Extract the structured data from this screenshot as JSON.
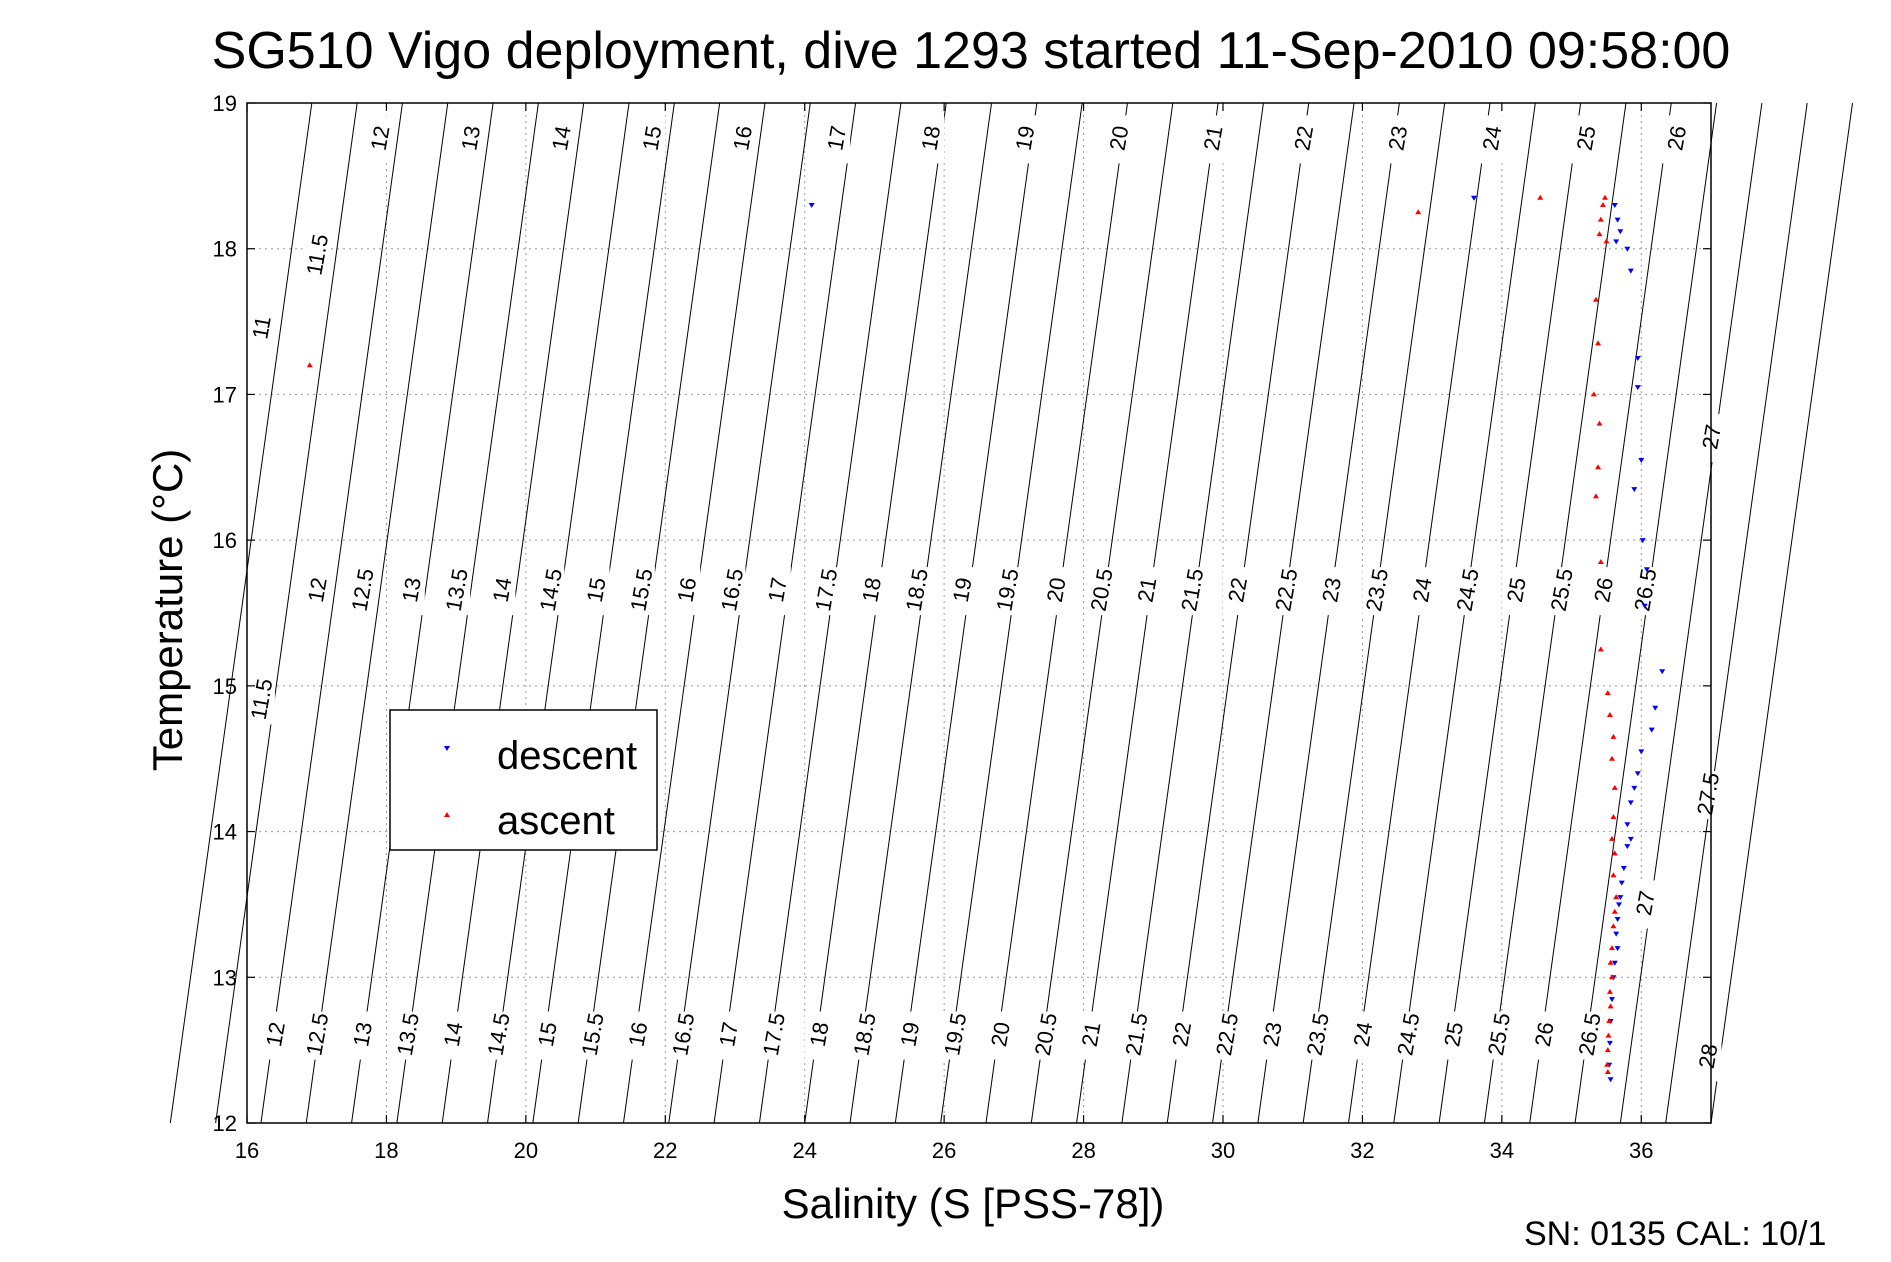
{
  "chart_data": {
    "type": "scatter",
    "title": "SG510 Vigo deployment, dive 1293 started 11-Sep-2010 09:58:00",
    "xlabel": "Salinity (S [PSS-78])",
    "ylabel": "Temperature (°C)",
    "xlim": [
      16,
      37
    ],
    "ylim": [
      12,
      19
    ],
    "x_ticks": [
      "16",
      "18",
      "20",
      "22",
      "24",
      "26",
      "28",
      "30",
      "32",
      "34",
      "36"
    ],
    "y_ticks": [
      "12",
      "13",
      "14",
      "15",
      "16",
      "17",
      "18",
      "19"
    ],
    "grid": true,
    "legend_position": "middle-left",
    "footer": "SN: 0135  CAL: 10/1",
    "series": [
      {
        "name": "descent",
        "color": "#0000ff",
        "marker": "triangle-down",
        "points": [
          [
            24.1,
            18.3
          ],
          [
            33.6,
            18.35
          ],
          [
            35.62,
            18.3
          ],
          [
            35.66,
            18.2
          ],
          [
            35.7,
            18.12
          ],
          [
            35.64,
            18.05
          ],
          [
            35.8,
            18.0
          ],
          [
            35.85,
            17.85
          ],
          [
            35.95,
            17.25
          ],
          [
            35.95,
            17.05
          ],
          [
            36.0,
            16.55
          ],
          [
            35.9,
            16.35
          ],
          [
            36.02,
            16.0
          ],
          [
            36.08,
            15.8
          ],
          [
            36.05,
            15.55
          ],
          [
            36.3,
            15.1
          ],
          [
            36.2,
            14.85
          ],
          [
            36.15,
            14.7
          ],
          [
            36.0,
            14.55
          ],
          [
            35.95,
            14.4
          ],
          [
            35.9,
            14.3
          ],
          [
            35.85,
            14.2
          ],
          [
            35.8,
            14.05
          ],
          [
            35.85,
            13.95
          ],
          [
            35.8,
            13.9
          ],
          [
            35.75,
            13.75
          ],
          [
            35.72,
            13.65
          ],
          [
            35.7,
            13.55
          ],
          [
            35.68,
            13.5
          ],
          [
            35.66,
            13.4
          ],
          [
            35.64,
            13.3
          ],
          [
            35.66,
            13.2
          ],
          [
            35.62,
            13.1
          ],
          [
            35.6,
            13.0
          ],
          [
            35.58,
            12.85
          ],
          [
            35.56,
            12.7
          ],
          [
            35.55,
            12.55
          ],
          [
            35.54,
            12.4
          ],
          [
            35.56,
            12.3
          ]
        ]
      },
      {
        "name": "ascent",
        "color": "#ff0000",
        "marker": "triangle-up",
        "points": [
          [
            16.9,
            17.2
          ],
          [
            32.8,
            18.25
          ],
          [
            34.55,
            18.35
          ],
          [
            35.48,
            18.35
          ],
          [
            35.45,
            18.3
          ],
          [
            35.42,
            18.2
          ],
          [
            35.4,
            18.1
          ],
          [
            35.5,
            18.05
          ],
          [
            35.35,
            17.65
          ],
          [
            35.38,
            17.35
          ],
          [
            35.32,
            17.0
          ],
          [
            35.4,
            16.8
          ],
          [
            35.38,
            16.5
          ],
          [
            35.35,
            16.3
          ],
          [
            35.42,
            15.85
          ],
          [
            35.42,
            15.25
          ],
          [
            35.52,
            14.95
          ],
          [
            35.55,
            14.8
          ],
          [
            35.6,
            14.65
          ],
          [
            35.58,
            14.5
          ],
          [
            35.62,
            14.3
          ],
          [
            35.6,
            14.1
          ],
          [
            35.58,
            13.95
          ],
          [
            35.62,
            13.85
          ],
          [
            35.6,
            13.7
          ],
          [
            35.64,
            13.55
          ],
          [
            35.62,
            13.45
          ],
          [
            35.6,
            13.35
          ],
          [
            35.58,
            13.2
          ],
          [
            35.56,
            13.1
          ],
          [
            35.58,
            13.0
          ],
          [
            35.55,
            12.9
          ],
          [
            35.56,
            12.8
          ],
          [
            35.54,
            12.7
          ],
          [
            35.53,
            12.6
          ],
          [
            35.52,
            12.5
          ],
          [
            35.51,
            12.4
          ],
          [
            35.52,
            12.35
          ]
        ]
      }
    ],
    "density_contours": {
      "sigma_levels": [
        11,
        11.5,
        12,
        12.5,
        13,
        13.5,
        14,
        14.5,
        15,
        15.5,
        16,
        16.5,
        17,
        17.5,
        18,
        18.5,
        19,
        19.5,
        20,
        20.5,
        21,
        21.5,
        22,
        22.5,
        23,
        23.5,
        24,
        24.5,
        25,
        25.5,
        26,
        26.5,
        27,
        27.5,
        28
      ],
      "labels_top": [
        {
          "text": "11",
          "s": 16.2,
          "t": 17.45
        },
        {
          "text": "11.5",
          "s": 17.0,
          "t": 17.95
        },
        {
          "text": "12",
          "s": 17.9,
          "t": 18.75
        },
        {
          "text": "13",
          "s": 19.2,
          "t": 18.75
        },
        {
          "text": "14",
          "s": 20.5,
          "t": 18.75
        },
        {
          "text": "15",
          "s": 21.8,
          "t": 18.75
        },
        {
          "text": "16",
          "s": 23.1,
          "t": 18.75
        },
        {
          "text": "17",
          "s": 24.45,
          "t": 18.75
        },
        {
          "text": "18",
          "s": 25.8,
          "t": 18.75
        },
        {
          "text": "19",
          "s": 27.15,
          "t": 18.75
        },
        {
          "text": "20",
          "s": 28.5,
          "t": 18.75
        },
        {
          "text": "21",
          "s": 29.85,
          "t": 18.75
        },
        {
          "text": "22",
          "s": 31.15,
          "t": 18.75
        },
        {
          "text": "23",
          "s": 32.5,
          "t": 18.75
        },
        {
          "text": "24",
          "s": 33.85,
          "t": 18.75
        },
        {
          "text": "25",
          "s": 35.2,
          "t": 18.75
        },
        {
          "text": "26",
          "s": 36.5,
          "t": 18.75
        },
        {
          "text": "27",
          "s": 37.0,
          "t": 16.7
        }
      ],
      "labels_middle": [
        {
          "text": "11.5",
          "s": 16.2,
          "t": 14.9
        },
        {
          "text": "12",
          "s": 17.0,
          "t": 15.65
        },
        {
          "text": "12.5",
          "s": 17.65,
          "t": 15.65
        },
        {
          "text": "13",
          "s": 18.35,
          "t": 15.65
        },
        {
          "text": "13.5",
          "s": 19.0,
          "t": 15.65
        },
        {
          "text": "14",
          "s": 19.65,
          "t": 15.65
        },
        {
          "text": "14.5",
          "s": 20.35,
          "t": 15.65
        },
        {
          "text": "15",
          "s": 21.0,
          "t": 15.65
        },
        {
          "text": "15.5",
          "s": 21.65,
          "t": 15.65
        },
        {
          "text": "16",
          "s": 22.3,
          "t": 15.65
        },
        {
          "text": "16.5",
          "s": 22.95,
          "t": 15.65
        },
        {
          "text": "17",
          "s": 23.6,
          "t": 15.65
        },
        {
          "text": "17.5",
          "s": 24.3,
          "t": 15.65
        },
        {
          "text": "18",
          "s": 24.95,
          "t": 15.65
        },
        {
          "text": "18.5",
          "s": 25.6,
          "t": 15.65
        },
        {
          "text": "19",
          "s": 26.25,
          "t": 15.65
        },
        {
          "text": "19.5",
          "s": 26.9,
          "t": 15.65
        },
        {
          "text": "20",
          "s": 27.6,
          "t": 15.65
        },
        {
          "text": "20.5",
          "s": 28.25,
          "t": 15.65
        },
        {
          "text": "21",
          "s": 28.9,
          "t": 15.65
        },
        {
          "text": "21.5",
          "s": 29.55,
          "t": 15.65
        },
        {
          "text": "22",
          "s": 30.2,
          "t": 15.65
        },
        {
          "text": "22.5",
          "s": 30.9,
          "t": 15.65
        },
        {
          "text": "23",
          "s": 31.55,
          "t": 15.65
        },
        {
          "text": "23.5",
          "s": 32.2,
          "t": 15.65
        },
        {
          "text": "24",
          "s": 32.85,
          "t": 15.65
        },
        {
          "text": "24.5",
          "s": 33.5,
          "t": 15.65
        },
        {
          "text": "25",
          "s": 34.2,
          "t": 15.65
        },
        {
          "text": "25.5",
          "s": 34.85,
          "t": 15.65
        },
        {
          "text": "26",
          "s": 35.45,
          "t": 15.65
        },
        {
          "text": "26.5",
          "s": 36.05,
          "t": 15.65
        },
        {
          "text": "27",
          "s": 36.05,
          "t": 13.5
        },
        {
          "text": "27.5",
          "s": 36.95,
          "t": 14.25
        }
      ],
      "labels_bottom": [
        {
          "text": "12",
          "s": 16.4,
          "t": 12.6
        },
        {
          "text": "12.5",
          "s": 17.0,
          "t": 12.6
        },
        {
          "text": "13",
          "s": 17.65,
          "t": 12.6
        },
        {
          "text": "13.5",
          "s": 18.3,
          "t": 12.6
        },
        {
          "text": "14",
          "s": 18.95,
          "t": 12.6
        },
        {
          "text": "14.5",
          "s": 19.6,
          "t": 12.6
        },
        {
          "text": "15",
          "s": 20.3,
          "t": 12.6
        },
        {
          "text": "15.5",
          "s": 20.95,
          "t": 12.6
        },
        {
          "text": "16",
          "s": 21.6,
          "t": 12.6
        },
        {
          "text": "16.5",
          "s": 22.25,
          "t": 12.6
        },
        {
          "text": "17",
          "s": 22.9,
          "t": 12.6
        },
        {
          "text": "17.5",
          "s": 23.55,
          "t": 12.6
        },
        {
          "text": "18",
          "s": 24.2,
          "t": 12.6
        },
        {
          "text": "18.5",
          "s": 24.85,
          "t": 12.6
        },
        {
          "text": "19",
          "s": 25.5,
          "t": 12.6
        },
        {
          "text": "19.5",
          "s": 26.15,
          "t": 12.6
        },
        {
          "text": "20",
          "s": 26.8,
          "t": 12.6
        },
        {
          "text": "20.5",
          "s": 27.45,
          "t": 12.6
        },
        {
          "text": "21",
          "s": 28.1,
          "t": 12.6
        },
        {
          "text": "21.5",
          "s": 28.75,
          "t": 12.6
        },
        {
          "text": "22",
          "s": 29.4,
          "t": 12.6
        },
        {
          "text": "22.5",
          "s": 30.05,
          "t": 12.6
        },
        {
          "text": "23",
          "s": 30.7,
          "t": 12.6
        },
        {
          "text": "23.5",
          "s": 31.35,
          "t": 12.6
        },
        {
          "text": "24",
          "s": 32.0,
          "t": 12.6
        },
        {
          "text": "24.5",
          "s": 32.65,
          "t": 12.6
        },
        {
          "text": "25",
          "s": 33.3,
          "t": 12.6
        },
        {
          "text": "25.5",
          "s": 33.95,
          "t": 12.6
        },
        {
          "text": "26",
          "s": 34.6,
          "t": 12.6
        },
        {
          "text": "26.5",
          "s": 35.25,
          "t": 12.6
        },
        {
          "text": "28",
          "s": 36.95,
          "t": 12.45
        }
      ]
    }
  }
}
